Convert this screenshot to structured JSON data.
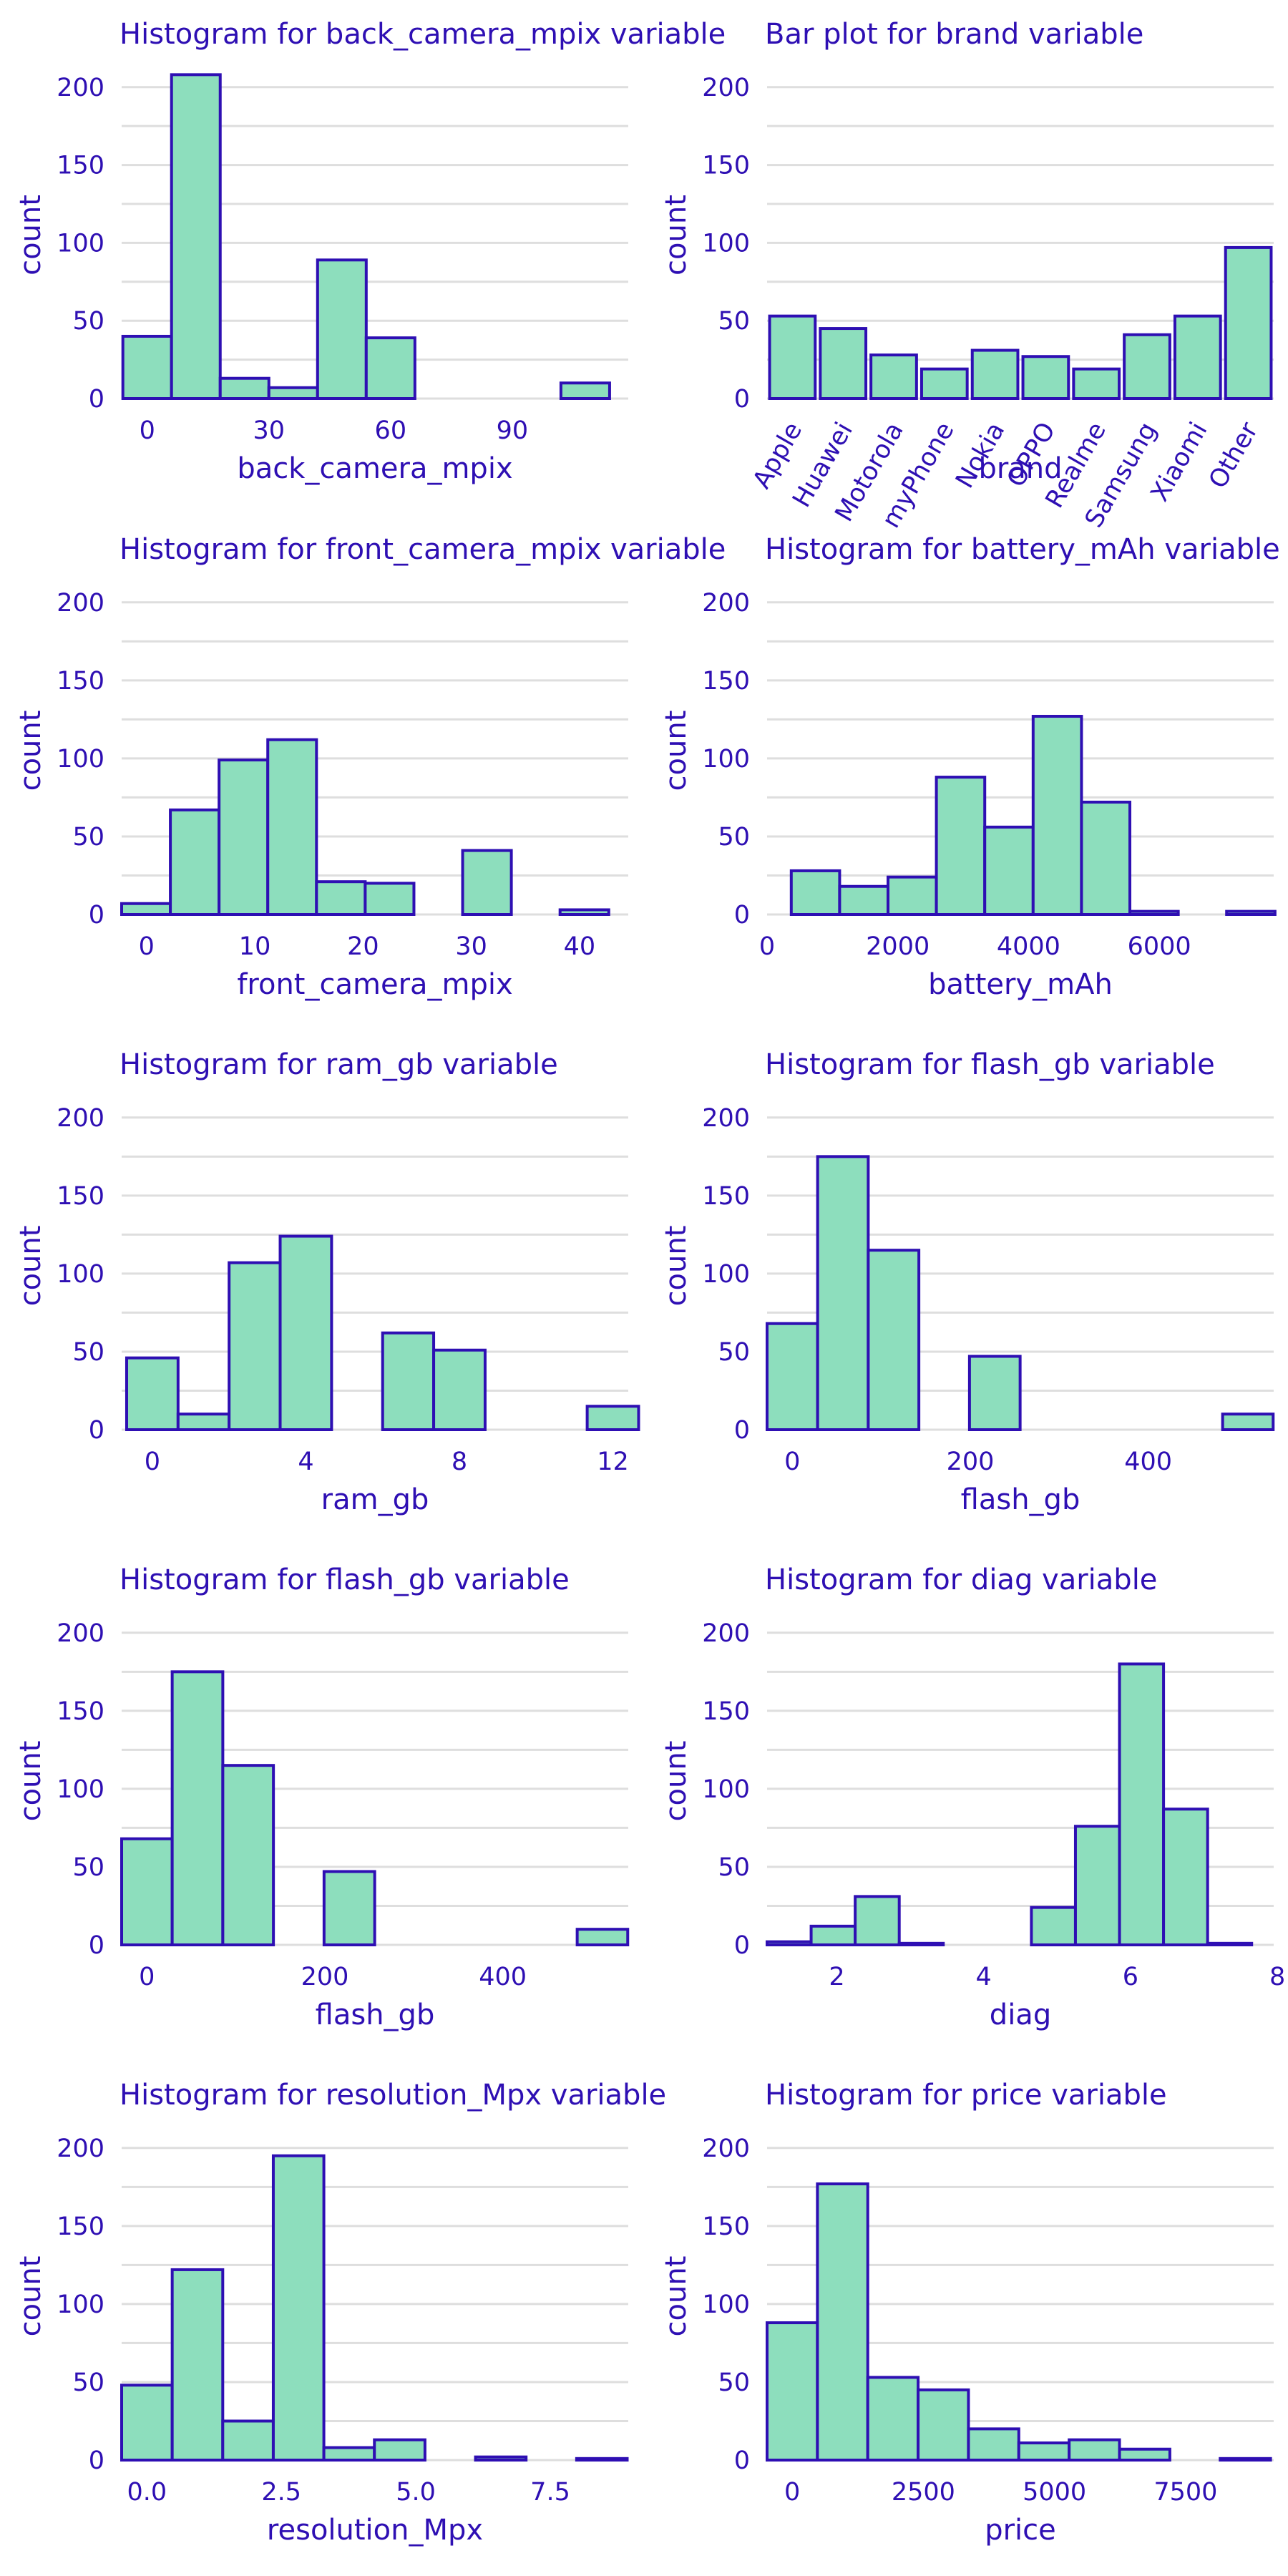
{
  "colors": {
    "fill": "#8ddebd",
    "stroke": "#2e0fb3",
    "text": "#2e0fb3",
    "grid": "#dedede"
  },
  "chart_data": [
    {
      "id": "back_camera_mpix",
      "type": "bar",
      "title": "Histogram for back_camera_mpix variable",
      "xlabel": "back_camera_mpix",
      "ylabel": "count",
      "ylim": [
        0,
        210
      ],
      "yticks": [
        0,
        50,
        100,
        150,
        200
      ],
      "xlim": [
        -6.3,
        118.6
      ],
      "xticks": [
        0,
        30,
        60,
        90
      ],
      "xtick_labels": [
        "0",
        "30",
        "60",
        "90"
      ],
      "bins": [
        {
          "x0": -6,
          "x1": 6,
          "value": 40
        },
        {
          "x0": 6,
          "x1": 18,
          "value": 208
        },
        {
          "x0": 18,
          "x1": 30,
          "value": 13
        },
        {
          "x0": 30,
          "x1": 42,
          "value": 7
        },
        {
          "x0": 42,
          "x1": 54,
          "value": 89
        },
        {
          "x0": 54,
          "x1": 66,
          "value": 39
        },
        {
          "x0": 66,
          "x1": 78,
          "value": 0
        },
        {
          "x0": 78,
          "x1": 90,
          "value": 0
        },
        {
          "x0": 90,
          "x1": 102,
          "value": 0
        },
        {
          "x0": 102,
          "x1": 114,
          "value": 10
        }
      ]
    },
    {
      "id": "brand",
      "type": "bar",
      "title": "Bar plot for brand variable",
      "xlabel": "brand",
      "ylabel": "count",
      "ylim": [
        0,
        210
      ],
      "yticks": [
        0,
        50,
        100,
        150,
        200
      ],
      "categories": [
        "Apple",
        "Huawei",
        "Motorola",
        "myPhone",
        "Nokia",
        "OPPO",
        "Realme",
        "Samsung",
        "Xiaomi",
        "Other"
      ],
      "values": [
        53,
        45,
        28,
        19,
        31,
        27,
        19,
        41,
        53,
        97
      ]
    },
    {
      "id": "front_camera_mpix",
      "type": "bar",
      "title": "Histogram for front_camera_mpix variable",
      "xlabel": "front_camera_mpix",
      "ylabel": "count",
      "ylim": [
        0,
        210
      ],
      "yticks": [
        0,
        50,
        100,
        150,
        200
      ],
      "xlim": [
        -2.3,
        44.5
      ],
      "xticks": [
        0,
        10,
        20,
        30,
        40
      ],
      "xtick_labels": [
        "0",
        "10",
        "20",
        "30",
        "40"
      ],
      "bins": [
        {
          "x0": -2.3,
          "x1": 2.2,
          "value": 7
        },
        {
          "x0": 2.2,
          "x1": 6.7,
          "value": 67
        },
        {
          "x0": 6.7,
          "x1": 11.2,
          "value": 99
        },
        {
          "x0": 11.2,
          "x1": 15.7,
          "value": 112
        },
        {
          "x0": 15.7,
          "x1": 20.2,
          "value": 21
        },
        {
          "x0": 20.2,
          "x1": 24.7,
          "value": 20
        },
        {
          "x0": 24.7,
          "x1": 29.2,
          "value": 0
        },
        {
          "x0": 29.2,
          "x1": 33.7,
          "value": 41
        },
        {
          "x0": 33.7,
          "x1": 38.2,
          "value": 0
        },
        {
          "x0": 38.2,
          "x1": 42.7,
          "value": 3
        }
      ]
    },
    {
      "id": "battery_mAh",
      "type": "bar",
      "title": "Histogram for battery_mAh variable",
      "xlabel": "battery_mAh",
      "ylabel": "count",
      "ylim": [
        0,
        210
      ],
      "yticks": [
        0,
        50,
        100,
        150,
        200
      ],
      "xlim": [
        0,
        7750
      ],
      "xticks": [
        0,
        2000,
        4000,
        6000
      ],
      "xtick_labels": [
        "0",
        "2000",
        "4000",
        "6000"
      ],
      "bins": [
        {
          "x0": 370,
          "x1": 1110,
          "value": 28
        },
        {
          "x0": 1110,
          "x1": 1850,
          "value": 18
        },
        {
          "x0": 1850,
          "x1": 2590,
          "value": 24
        },
        {
          "x0": 2590,
          "x1": 3330,
          "value": 88
        },
        {
          "x0": 3330,
          "x1": 4070,
          "value": 56
        },
        {
          "x0": 4070,
          "x1": 4810,
          "value": 127
        },
        {
          "x0": 4810,
          "x1": 5550,
          "value": 72
        },
        {
          "x0": 5550,
          "x1": 6290,
          "value": 2
        },
        {
          "x0": 6290,
          "x1": 7030,
          "value": 0
        },
        {
          "x0": 7030,
          "x1": 7770,
          "value": 2
        }
      ]
    },
    {
      "id": "ram_gb",
      "type": "bar",
      "title": "Histogram for ram_gb variable",
      "xlabel": "ram_gb",
      "ylabel": "count",
      "ylim": [
        0,
        210
      ],
      "yticks": [
        0,
        50,
        100,
        150,
        200
      ],
      "xlim": [
        -0.8,
        12.4
      ],
      "xticks": [
        0,
        4,
        8,
        12
      ],
      "xtick_labels": [
        "0",
        "4",
        "8",
        "12"
      ],
      "bins": [
        {
          "x0": -0.67,
          "x1": 0.67,
          "value": 46
        },
        {
          "x0": 0.67,
          "x1": 2.0,
          "value": 10
        },
        {
          "x0": 2.0,
          "x1": 3.33,
          "value": 107
        },
        {
          "x0": 3.33,
          "x1": 4.67,
          "value": 124
        },
        {
          "x0": 4.67,
          "x1": 6.0,
          "value": 0
        },
        {
          "x0": 6.0,
          "x1": 7.33,
          "value": 62
        },
        {
          "x0": 7.33,
          "x1": 8.67,
          "value": 51
        },
        {
          "x0": 8.67,
          "x1": 10.0,
          "value": 0
        },
        {
          "x0": 10.0,
          "x1": 11.33,
          "value": 0
        },
        {
          "x0": 11.33,
          "x1": 12.67,
          "value": 15
        }
      ]
    },
    {
      "id": "flash_gb_1",
      "type": "bar",
      "title": "Histogram for flash_gb variable",
      "xlabel": "flash_gb",
      "ylabel": "count",
      "ylim": [
        0,
        210
      ],
      "yticks": [
        0,
        50,
        100,
        150,
        200
      ],
      "xlim": [
        -28.4,
        541
      ],
      "xticks": [
        0,
        200,
        400
      ],
      "xtick_labels": [
        "0",
        "200",
        "400"
      ],
      "bins": [
        {
          "x0": -28.4,
          "x1": 28.4,
          "value": 68
        },
        {
          "x0": 28.4,
          "x1": 85.3,
          "value": 175
        },
        {
          "x0": 85.3,
          "x1": 142.2,
          "value": 115
        },
        {
          "x0": 142.2,
          "x1": 199.1,
          "value": 0
        },
        {
          "x0": 199.1,
          "x1": 256.0,
          "value": 47
        },
        {
          "x0": 256.0,
          "x1": 312.9,
          "value": 0
        },
        {
          "x0": 312.9,
          "x1": 369.8,
          "value": 0
        },
        {
          "x0": 369.8,
          "x1": 426.7,
          "value": 0
        },
        {
          "x0": 426.7,
          "x1": 483.6,
          "value": 0
        },
        {
          "x0": 483.6,
          "x1": 540.4,
          "value": 10
        }
      ]
    },
    {
      "id": "flash_gb_2",
      "type": "bar",
      "title": "Histogram for flash_gb variable",
      "xlabel": "flash_gb",
      "ylabel": "count",
      "ylim": [
        0,
        210
      ],
      "yticks": [
        0,
        50,
        100,
        150,
        200
      ],
      "xlim": [
        -28.4,
        541
      ],
      "xticks": [
        0,
        200,
        400
      ],
      "xtick_labels": [
        "0",
        "200",
        "400"
      ],
      "bins": [
        {
          "x0": -28.4,
          "x1": 28.4,
          "value": 68
        },
        {
          "x0": 28.4,
          "x1": 85.3,
          "value": 175
        },
        {
          "x0": 85.3,
          "x1": 142.2,
          "value": 115
        },
        {
          "x0": 142.2,
          "x1": 199.1,
          "value": 0
        },
        {
          "x0": 199.1,
          "x1": 256.0,
          "value": 47
        },
        {
          "x0": 256.0,
          "x1": 312.9,
          "value": 0
        },
        {
          "x0": 312.9,
          "x1": 369.8,
          "value": 0
        },
        {
          "x0": 369.8,
          "x1": 426.7,
          "value": 0
        },
        {
          "x0": 426.7,
          "x1": 483.6,
          "value": 0
        },
        {
          "x0": 483.6,
          "x1": 540.4,
          "value": 10
        }
      ]
    },
    {
      "id": "diag",
      "type": "bar",
      "title": "Histogram for diag variable",
      "xlabel": "diag",
      "ylabel": "count",
      "ylim": [
        0,
        210
      ],
      "yticks": [
        0,
        50,
        100,
        150,
        200
      ],
      "xlim": [
        1.05,
        7.95
      ],
      "xticks": [
        2,
        4,
        6,
        8
      ],
      "xtick_labels": [
        "2",
        "4",
        "6",
        "8"
      ],
      "bins": [
        {
          "x0": 1.05,
          "x1": 1.65,
          "value": 2
        },
        {
          "x0": 1.65,
          "x1": 2.25,
          "value": 12
        },
        {
          "x0": 2.25,
          "x1": 2.85,
          "value": 31
        },
        {
          "x0": 2.85,
          "x1": 3.45,
          "value": 1
        },
        {
          "x0": 3.45,
          "x1": 4.05,
          "value": 0
        },
        {
          "x0": 4.05,
          "x1": 4.65,
          "value": 0
        },
        {
          "x0": 4.65,
          "x1": 5.25,
          "value": 24
        },
        {
          "x0": 5.25,
          "x1": 5.85,
          "value": 76
        },
        {
          "x0": 5.85,
          "x1": 6.45,
          "value": 180
        },
        {
          "x0": 6.45,
          "x1": 7.05,
          "value": 87
        },
        {
          "x0": 7.05,
          "x1": 7.65,
          "value": 1
        }
      ]
    },
    {
      "id": "resolution_Mpx",
      "type": "bar",
      "title": "Histogram for resolution_Mpx variable",
      "xlabel": "resolution_Mpx",
      "ylabel": "count",
      "ylim": [
        0,
        210
      ],
      "yticks": [
        0,
        50,
        100,
        150,
        200
      ],
      "xlim": [
        -0.47,
        8.95
      ],
      "xticks": [
        0,
        2.5,
        5,
        7.5
      ],
      "xtick_labels": [
        "0.0",
        "2.5",
        "5.0",
        "7.5"
      ],
      "bins": [
        {
          "x0": -0.47,
          "x1": 0.47,
          "value": 48
        },
        {
          "x0": 0.47,
          "x1": 1.41,
          "value": 122
        },
        {
          "x0": 1.41,
          "x1": 2.35,
          "value": 25
        },
        {
          "x0": 2.35,
          "x1": 3.29,
          "value": 195
        },
        {
          "x0": 3.29,
          "x1": 4.23,
          "value": 8
        },
        {
          "x0": 4.23,
          "x1": 5.17,
          "value": 13
        },
        {
          "x0": 5.17,
          "x1": 6.11,
          "value": 0
        },
        {
          "x0": 6.11,
          "x1": 7.05,
          "value": 2
        },
        {
          "x0": 7.05,
          "x1": 7.99,
          "value": 0
        },
        {
          "x0": 7.99,
          "x1": 8.93,
          "value": 1
        }
      ]
    },
    {
      "id": "price",
      "type": "bar",
      "title": "Histogram for price variable",
      "xlabel": "price",
      "ylabel": "count",
      "ylim": [
        0,
        210
      ],
      "yticks": [
        0,
        50,
        100,
        150,
        200
      ],
      "xlim": [
        -480,
        9180
      ],
      "xticks": [
        0,
        2500,
        5000,
        7500
      ],
      "xtick_labels": [
        "0",
        "2500",
        "5000",
        "7500"
      ],
      "bins": [
        {
          "x0": -480,
          "x1": 480,
          "value": 88
        },
        {
          "x0": 480,
          "x1": 1440,
          "value": 177
        },
        {
          "x0": 1440,
          "x1": 2400,
          "value": 53
        },
        {
          "x0": 2400,
          "x1": 3360,
          "value": 45
        },
        {
          "x0": 3360,
          "x1": 4320,
          "value": 20
        },
        {
          "x0": 4320,
          "x1": 5280,
          "value": 11
        },
        {
          "x0": 5280,
          "x1": 6240,
          "value": 13
        },
        {
          "x0": 6240,
          "x1": 7200,
          "value": 7
        },
        {
          "x0": 7200,
          "x1": 8160,
          "value": 0
        },
        {
          "x0": 8160,
          "x1": 9120,
          "value": 1
        }
      ]
    }
  ]
}
